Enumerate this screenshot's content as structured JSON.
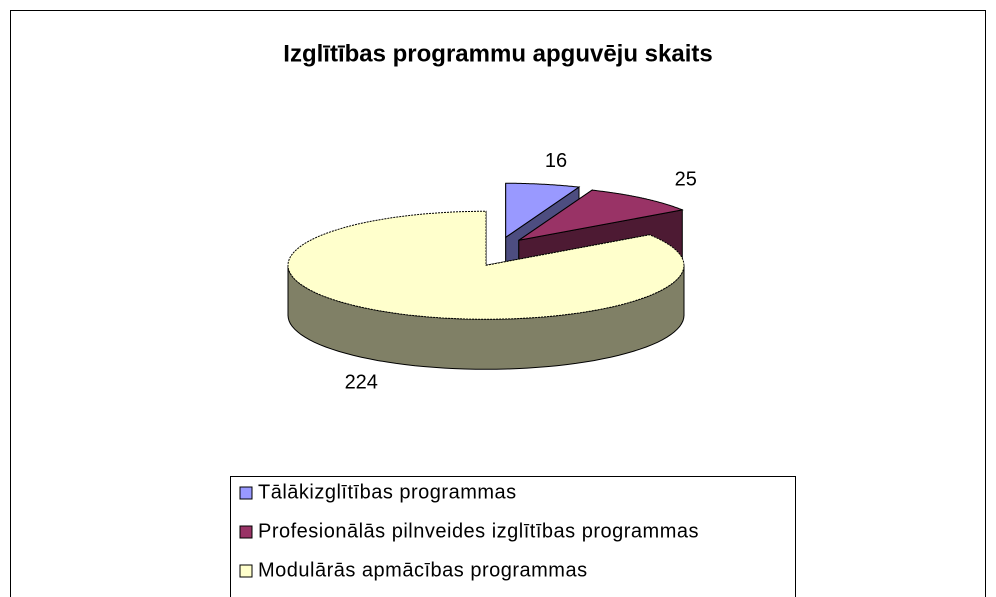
{
  "chart_data": {
    "type": "pie",
    "title": "Izglītības programmu apguvēju skaits",
    "categories": [
      "Tālākizglītības programmas",
      "Profesionālās pilnveides izglītības programmas",
      "Modulārās apmācības programmas"
    ],
    "values": [
      16,
      25,
      224
    ],
    "colors": [
      "#9999ff",
      "#993366",
      "#ffffcc"
    ],
    "legend": "bottom"
  }
}
